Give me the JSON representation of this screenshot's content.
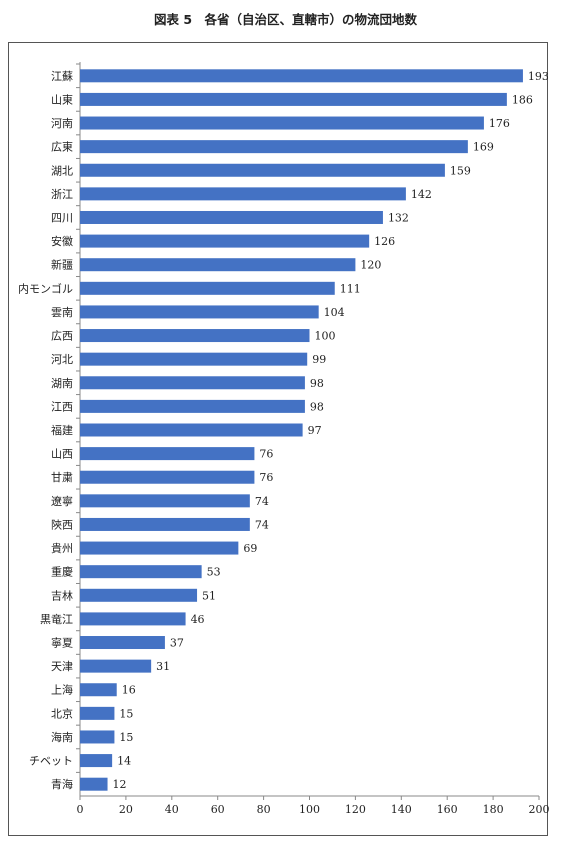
{
  "figure_title": "図表 5　各省（自治区、直轄市）の物流団地数",
  "chart_data": {
    "type": "bar",
    "orientation": "horizontal",
    "title": "図表 5　各省（自治区、直轄市）の物流団地数",
    "categories": [
      "江蘇",
      "山東",
      "河南",
      "広東",
      "湖北",
      "浙江",
      "四川",
      "安徽",
      "新疆",
      "内モンゴル",
      "雲南",
      "広西",
      "河北",
      "湖南",
      "江西",
      "福建",
      "山西",
      "甘粛",
      "遼寧",
      "陝西",
      "貴州",
      "重慶",
      "吉林",
      "黒竜江",
      "寧夏",
      "天津",
      "上海",
      "北京",
      "海南",
      "チベット",
      "青海"
    ],
    "values": [
      193,
      186,
      176,
      169,
      159,
      142,
      132,
      126,
      120,
      111,
      104,
      100,
      99,
      98,
      98,
      97,
      76,
      76,
      74,
      74,
      69,
      53,
      51,
      46,
      37,
      31,
      16,
      15,
      15,
      14,
      12
    ],
    "value_labels": [
      "193",
      "186",
      "176",
      "169",
      "159",
      "142",
      "132",
      "126",
      "120",
      "111",
      "104",
      "100",
      "99",
      "98",
      "98",
      "97",
      "76",
      "76",
      "74",
      "74",
      "69",
      "53",
      "51",
      "46",
      "37",
      "31",
      "16",
      "15",
      "15",
      "14",
      "12"
    ],
    "xlim": [
      0,
      200
    ],
    "x_ticks": [
      "0",
      "20",
      "40",
      "60",
      "80",
      "100",
      "120",
      "140",
      "160",
      "180",
      "200"
    ],
    "bar_color": "#4472C4",
    "grid": false,
    "legend": "none"
  }
}
